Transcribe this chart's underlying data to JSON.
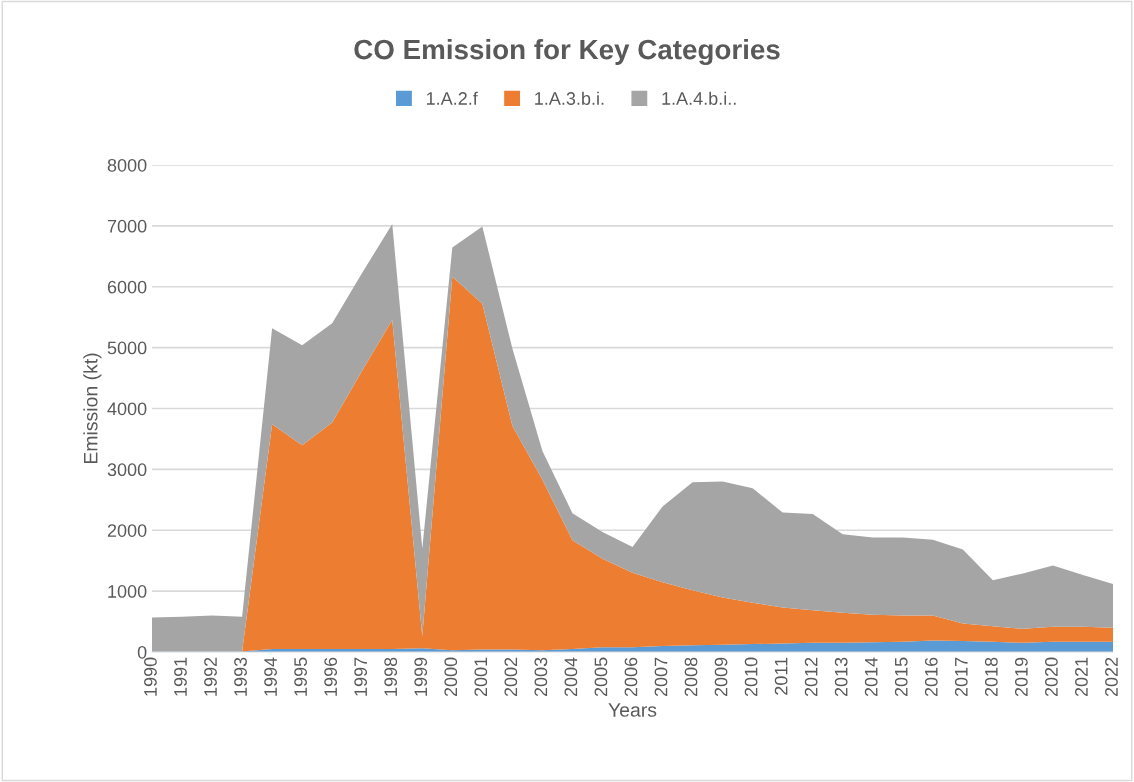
{
  "chart_data": {
    "type": "area",
    "stacked": true,
    "title": "CO Emission for Key Categories",
    "xlabel": "Years",
    "ylabel": "Emission (kt)",
    "categories": [
      "1990",
      "1991",
      "1992",
      "1993",
      "1994",
      "1995",
      "1996",
      "1997",
      "1998",
      "1999",
      "2000",
      "2001",
      "2002",
      "2003",
      "2004",
      "2005",
      "2006",
      "2007",
      "2008",
      "2009",
      "2010",
      "2011",
      "2012",
      "2013",
      "2014",
      "2015",
      "2016",
      "2017",
      "2018",
      "2019",
      "2020",
      "2021",
      "2022"
    ],
    "series": [
      {
        "name": "1.A.2.f",
        "color": "#5b9bd5",
        "values": [
          10,
          10,
          10,
          10,
          50,
          50,
          50,
          50,
          50,
          60,
          30,
          40,
          40,
          30,
          50,
          80,
          80,
          100,
          110,
          120,
          130,
          140,
          150,
          150,
          160,
          170,
          190,
          180,
          170,
          150,
          170,
          170,
          170
        ]
      },
      {
        "name": "1.A.3.b.i.",
        "color": "#ed7d31",
        "values": [
          0,
          0,
          0,
          0,
          3690,
          3345,
          3720,
          4575,
          5405,
          200,
          6135,
          5680,
          3675,
          2800,
          1785,
          1450,
          1220,
          1045,
          905,
          775,
          680,
          590,
          535,
          495,
          450,
          430,
          410,
          290,
          255,
          230,
          245,
          245,
          230
        ]
      },
      {
        "name": "1.A.4.b.i..",
        "color": "#a5a5a5",
        "values": [
          555,
          570,
          590,
          570,
          1580,
          1645,
          1630,
          1605,
          1575,
          1440,
          480,
          1270,
          1270,
          470,
          445,
          440,
          425,
          1245,
          1775,
          1905,
          1880,
          1560,
          1580,
          1290,
          1270,
          1280,
          1245,
          1215,
          755,
          910,
          1005,
          850,
          715
        ]
      }
    ],
    "ylim": [
      0,
      8000
    ],
    "yticks": [
      0,
      1000,
      2000,
      3000,
      4000,
      5000,
      6000,
      7000,
      8000
    ],
    "grid": "y",
    "legend": "top"
  }
}
